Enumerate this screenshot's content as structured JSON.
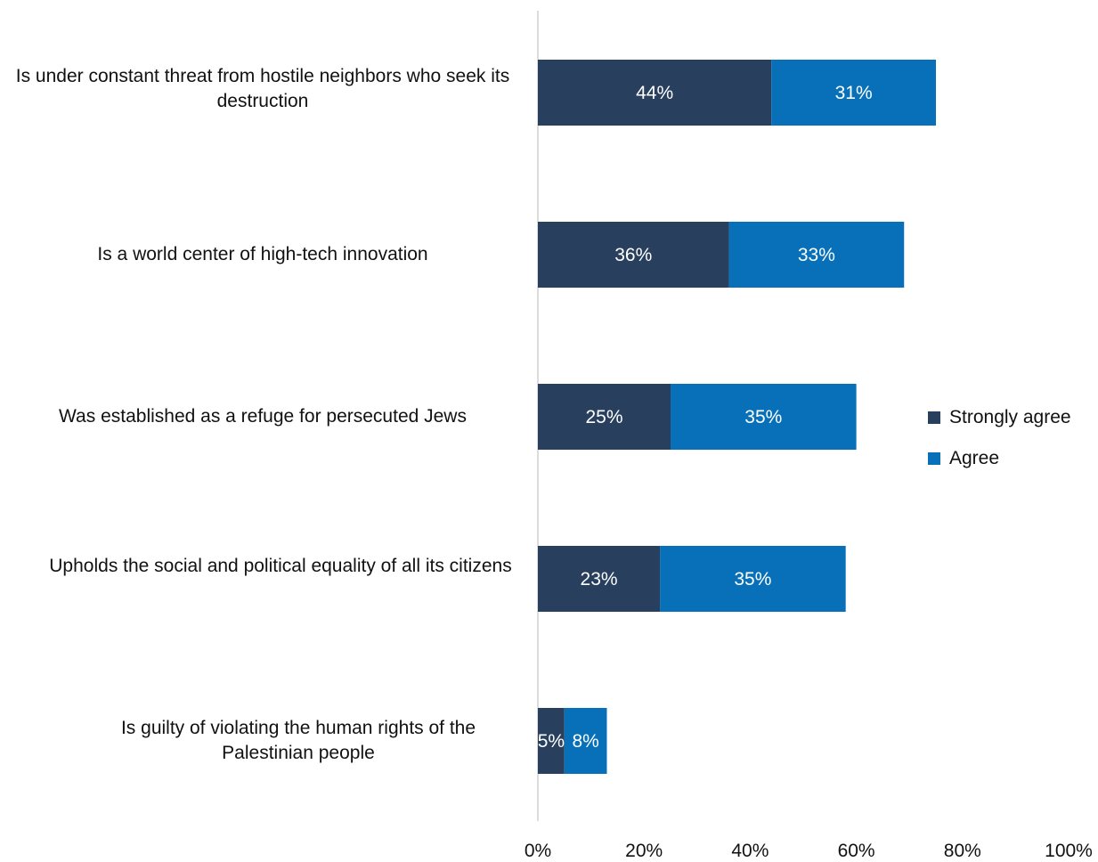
{
  "chart_data": {
    "type": "bar",
    "orientation": "horizontal",
    "stacked": true,
    "categories": [
      "Is under constant threat from hostile neighbors who seek its destruction",
      "Is a world center of high-tech innovation",
      "Was established as a refuge for persecuted Jews",
      "Upholds the social and political equality of all its citizens",
      "Is guilty of violating the human rights of the Palestinian people"
    ],
    "series": [
      {
        "name": "Strongly agree",
        "color": "#283f5e",
        "values": [
          44,
          36,
          25,
          23,
          5
        ],
        "labels": [
          "44%",
          "36%",
          "25%",
          "23%",
          "5%"
        ]
      },
      {
        "name": "Agree",
        "color": "#0870b9",
        "values": [
          31,
          33,
          35,
          35,
          8
        ],
        "labels": [
          "31%",
          "33%",
          "35%",
          "35%",
          "8%"
        ]
      }
    ],
    "xlim": [
      0,
      100
    ],
    "xticks": [
      "0%",
      "20%",
      "40%",
      "60%",
      "80%",
      "100%"
    ],
    "legend_position": "right",
    "grid": false
  }
}
